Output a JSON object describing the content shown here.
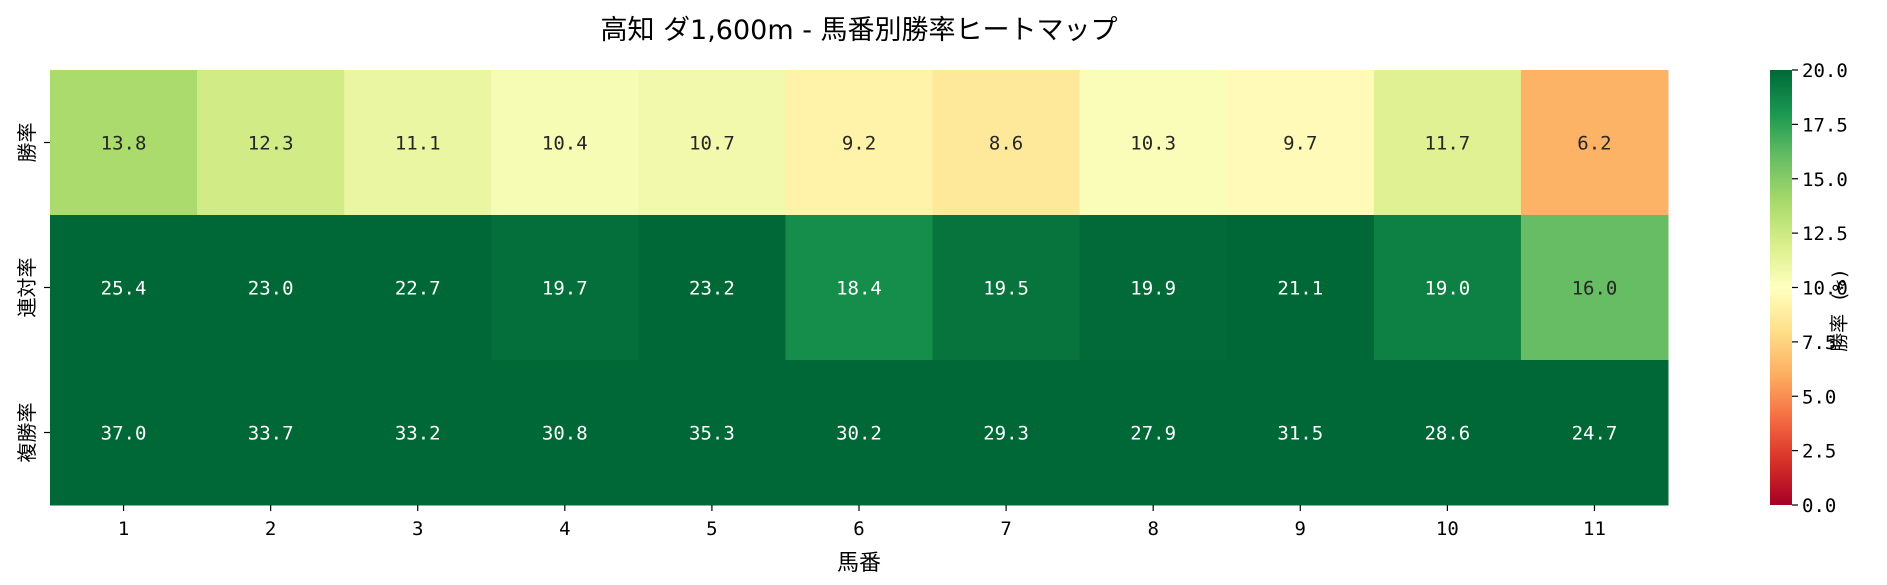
{
  "chart_data": {
    "type": "heatmap",
    "title": "高知 ダ1,600m - 馬番別勝率ヒートマップ",
    "xlabel": "馬番",
    "ylabel": "",
    "x_categories": [
      "1",
      "2",
      "3",
      "4",
      "5",
      "6",
      "7",
      "8",
      "9",
      "10",
      "11"
    ],
    "y_categories": [
      "勝率",
      "連対率",
      "複勝率"
    ],
    "values": [
      [
        13.8,
        12.3,
        11.1,
        10.4,
        10.7,
        9.2,
        8.6,
        10.3,
        9.7,
        11.7,
        6.2
      ],
      [
        25.4,
        23.0,
        22.7,
        19.7,
        23.2,
        18.4,
        19.5,
        19.9,
        21.1,
        19.0,
        16.0
      ],
      [
        37.0,
        33.7,
        33.2,
        30.8,
        35.3,
        30.2,
        29.3,
        27.9,
        31.5,
        28.6,
        24.7
      ]
    ],
    "colorbar": {
      "label": "勝率 (%)",
      "vmin": 0.0,
      "vmax": 20.0,
      "ticks": [
        "0.0",
        "2.5",
        "5.0",
        "7.5",
        "10.0",
        "12.5",
        "15.0",
        "17.5",
        "20.0"
      ],
      "colormap": "RdYlGn"
    },
    "grid": false
  }
}
